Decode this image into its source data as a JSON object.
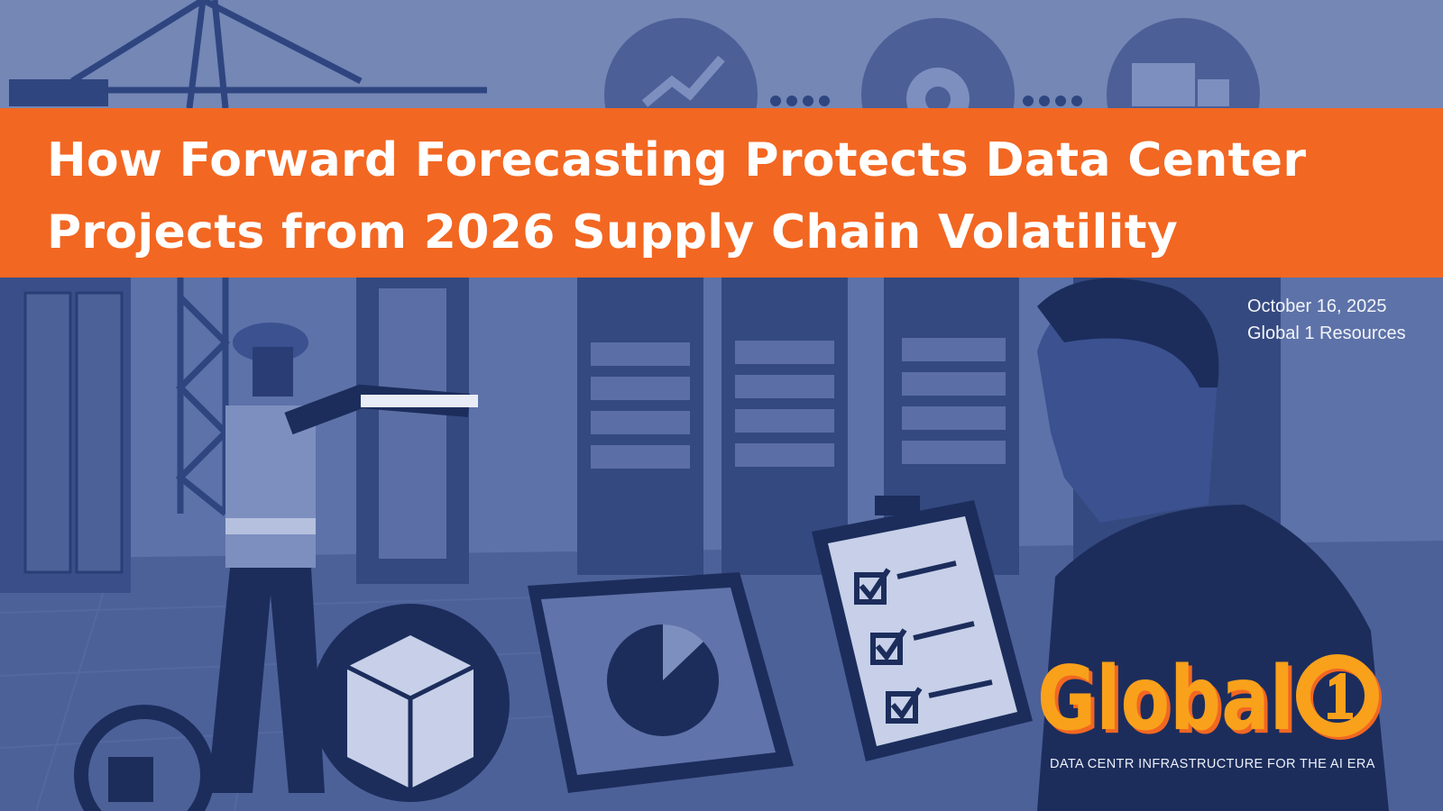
{
  "title": {
    "line1": "How Forward Forecasting Protects Data Center",
    "line2": "Projects from 2026 Supply Chain Volatility"
  },
  "meta": {
    "date": "October 16, 2025",
    "author": "Global 1 Resources"
  },
  "brand": {
    "logo_text": "Global1",
    "tagline": "DATA CENTR INFRASTRUCTURE FOR THE AI ERA"
  },
  "colors": {
    "banner": "#f26722",
    "logo": "#f9a11b",
    "logo_shadow": "#f26722",
    "navy": "#1c2d5c",
    "background": "#7487b5"
  },
  "icons": [
    "crane-icon",
    "growth-chart-icon",
    "gear-icon",
    "truck-icon",
    "package-icon",
    "return-package-icon",
    "clipboard-checklist-icon",
    "laptop-pie-chart-icon"
  ]
}
